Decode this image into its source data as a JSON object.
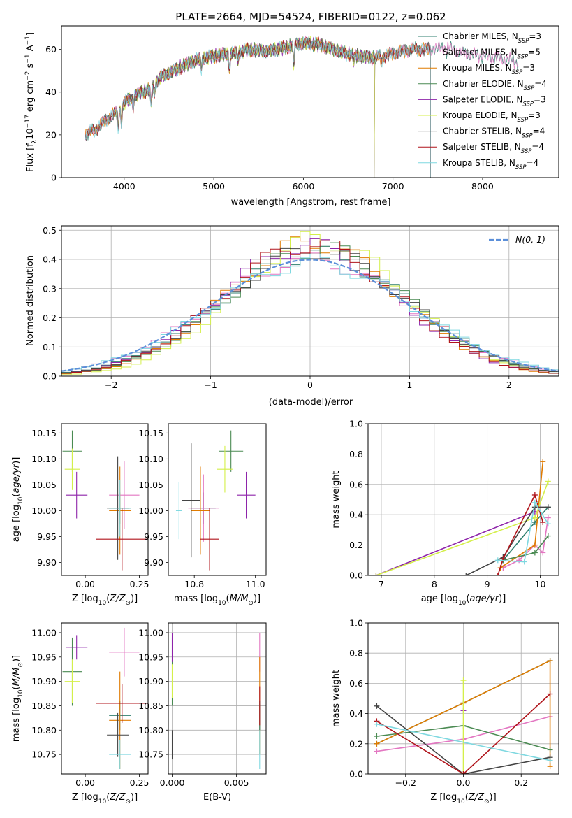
{
  "figure_title": "PLATE=2664, MJD=54524, FIBERID=0122, z=0.062",
  "colors": {
    "Chabrier MILES": "#2f7f6f",
    "Salpeter MILES": "#e377c2",
    "Kroupa MILES": "#e07b00",
    "Chabrier ELODIE": "#4a8a52",
    "Salpeter ELODIE": "#8e24aa",
    "Kroupa ELODIE": "#d4ef4a",
    "Chabrier STELIB": "#444444",
    "Salpeter STELIB": "#b0141b",
    "Kroupa STELIB": "#7fd8e0",
    "gaussian": "#5b8fd9",
    "grid": "#b0b0b0"
  },
  "chart_data": [
    {
      "id": "spectrum",
      "type": "line",
      "title": "PLATE=2664, MJD=54524, FIBERID=0122, z=0.062",
      "xlabel": "wavelength [Angstrom, rest frame]",
      "ylabel": "Flux [f_λ 10^-17 erg cm^-2 s^-1 A^-1]",
      "xlim": [
        3300,
        8850
      ],
      "ylim": [
        0,
        71
      ],
      "xticks": [
        4000,
        5000,
        6000,
        7000,
        8000
      ],
      "yticks": [
        0,
        20,
        40,
        60
      ],
      "grid": false,
      "legend_position": "top-right",
      "continuum": {
        "x": [
          3560,
          3700,
          3800,
          3900,
          4000,
          4100,
          4200,
          4300,
          4400,
          4600,
          4800,
          5000,
          5200,
          5400,
          5600,
          5800,
          6000,
          6200,
          6400,
          6600,
          6800,
          7000,
          7200,
          7400,
          7600,
          7800,
          8000,
          8200,
          8400
        ],
        "y": [
          20,
          23,
          27,
          30,
          35,
          38,
          40,
          41,
          47,
          51,
          55,
          57,
          58,
          60,
          59,
          61,
          63,
          62,
          59,
          57,
          56,
          58,
          60,
          60,
          61,
          58,
          57,
          56,
          54
        ]
      },
      "series": [
        {
          "name": "Chabrier MILES, N_SSP=3",
          "label_main": "Chabrier MILES, N",
          "label_sub": "SSP",
          "label_tail": "=3",
          "start": 3560,
          "end": 8400,
          "drop": null
        },
        {
          "name": "Salpeter MILES, N_SSP=5",
          "label_main": "Salpeter MILES, N",
          "label_sub": "SSP",
          "label_tail": "=5",
          "start": 3560,
          "end": 8400,
          "drop": null
        },
        {
          "name": "Kroupa MILES, N_SSP=3",
          "label_main": "Kroupa MILES, N",
          "label_sub": "SSP",
          "label_tail": "=3",
          "start": 3560,
          "end": 7420,
          "drop": 7420
        },
        {
          "name": "Chabrier ELODIE, N_SSP=4",
          "label_main": "Chabrier ELODIE, N",
          "label_sub": "SSP",
          "label_tail": "=4",
          "start": 3900,
          "end": 6800,
          "drop": 6790
        },
        {
          "name": "Salpeter ELODIE, N_SSP=3",
          "label_main": "Salpeter ELODIE, N",
          "label_sub": "SSP",
          "label_tail": "=3",
          "start": 3900,
          "end": 6800,
          "drop": 6790
        },
        {
          "name": "Kroupa ELODIE, N_SSP=3",
          "label_main": "Kroupa ELODIE, N",
          "label_sub": "SSP",
          "label_tail": "=3",
          "start": 3900,
          "end": 6800,
          "drop": 6790
        },
        {
          "name": "Chabrier STELIB, N_SSP=4",
          "label_main": "Chabrier STELIB, N",
          "label_sub": "SSP",
          "label_tail": "=4",
          "start": 3560,
          "end": 7420,
          "drop": 7420
        },
        {
          "name": "Salpeter STELIB, N_SSP=4",
          "label_main": "Salpeter STELIB, N",
          "label_sub": "SSP",
          "label_tail": "=4",
          "start": 3560,
          "end": 7420,
          "drop": 7420
        },
        {
          "name": "Kroupa STELIB, N_SSP=4",
          "label_main": "Kroupa STELIB, N",
          "label_sub": "SSP",
          "label_tail": "=4",
          "start": 3560,
          "end": 7420,
          "drop": 7420
        }
      ]
    },
    {
      "id": "residuals",
      "type": "step",
      "xlabel": "(data-model)/error",
      "ylabel": "Normed distribution",
      "xlim": [
        -2.5,
        2.5
      ],
      "ylim": [
        0,
        0.515
      ],
      "xticks": [
        -2,
        -1,
        0,
        1,
        2
      ],
      "yticks": [
        0.0,
        0.1,
        0.2,
        0.3,
        0.4,
        0.5
      ],
      "grid": true,
      "legend_position": "top-right",
      "legend_label": "N(0, 1)",
      "bin_width": 0.1,
      "series": [
        {
          "model": "Chabrier MILES",
          "shift": 0.1,
          "scale": 1.05
        },
        {
          "model": "Salpeter MILES",
          "shift": 0.0,
          "scale": 1.0
        },
        {
          "model": "Kroupa MILES",
          "shift": 0.05,
          "scale": 1.15
        },
        {
          "model": "Chabrier ELODIE",
          "shift": 0.15,
          "scale": 1.1
        },
        {
          "model": "Salpeter ELODIE",
          "shift": -0.05,
          "scale": 1.12
        },
        {
          "model": "Kroupa ELODIE",
          "shift": 0.2,
          "scale": 1.18
        },
        {
          "model": "Chabrier STELIB",
          "shift": 0.1,
          "scale": 1.08
        },
        {
          "model": "Salpeter STELIB",
          "shift": 0.0,
          "scale": 1.13
        },
        {
          "model": "Kroupa STELIB",
          "shift": 0.05,
          "scale": 0.98
        }
      ]
    },
    {
      "id": "age-vs-z",
      "type": "scatter",
      "xlabel": "Z [log10(Z/Z⊙)]",
      "ylabel": "age [log10(age/yr)]",
      "xlim": [
        -0.11,
        0.29
      ],
      "ylim": [
        9.875,
        10.168
      ],
      "xticks": [
        0.0,
        0.25
      ],
      "xticklabels": [
        "0.00",
        "0.25"
      ],
      "yticks": [
        9.9,
        9.95,
        10.0,
        10.05,
        10.1,
        10.15
      ],
      "yticklabels": [
        "9.90",
        "9.95",
        "10.00",
        "10.05",
        "10.10",
        "10.15"
      ],
      "grid": false,
      "points": [
        {
          "model": "Chabrier MILES",
          "x": 0.16,
          "y": 10.005,
          "xerr": 0.05,
          "yerr": 0.03
        },
        {
          "model": "Salpeter MILES",
          "x": 0.18,
          "y": 10.03,
          "xerr": 0.07,
          "yerr": 0.065
        },
        {
          "model": "Kroupa MILES",
          "x": 0.16,
          "y": 10.0,
          "xerr": 0.05,
          "yerr": 0.085
        },
        {
          "model": "Chabrier ELODIE",
          "x": -0.06,
          "y": 10.115,
          "xerr": 0.045,
          "yerr": 0.04
        },
        {
          "model": "Salpeter ELODIE",
          "x": -0.04,
          "y": 10.03,
          "xerr": 0.05,
          "yerr": 0.045
        },
        {
          "model": "Kroupa ELODIE",
          "x": -0.06,
          "y": 10.08,
          "xerr": 0.035,
          "yerr": 0.04
        },
        {
          "model": "Chabrier STELIB",
          "x": 0.15,
          "y": 10.005,
          "xerr": 0.05,
          "yerr": 0.1
        },
        {
          "model": "Salpeter STELIB",
          "x": 0.17,
          "y": 9.945,
          "xerr": 0.12,
          "yerr": 0.06
        },
        {
          "model": "Kroupa STELIB",
          "x": 0.16,
          "y": 10.005,
          "xerr": 0.05,
          "yerr": 0.055
        }
      ]
    },
    {
      "id": "age-vs-mass",
      "type": "scatter",
      "xlabel": "mass [log10(M/M⊙)]",
      "ylabel": "",
      "xlim": [
        10.715,
        11.035
      ],
      "ylim": [
        9.875,
        10.168
      ],
      "xticks": [
        10.8,
        11.0
      ],
      "xticklabels": [
        "10.8",
        "11.0"
      ],
      "yticks": [
        9.9,
        9.95,
        10.0,
        10.05,
        10.1,
        10.15
      ],
      "yticklabels": [
        "9.90",
        "9.95",
        "10.00",
        "10.05",
        "10.10",
        "10.15"
      ],
      "grid": false,
      "points": [
        {
          "model": "Chabrier MILES",
          "x": 10.83,
          "y": 10.005,
          "xerr": 0.04,
          "yerr": 0.03
        },
        {
          "model": "Salpeter MILES",
          "x": 10.83,
          "y": 10.005,
          "xerr": 0.05,
          "yerr": 0.065
        },
        {
          "model": "Kroupa MILES",
          "x": 10.82,
          "y": 10.0,
          "xerr": 0.03,
          "yerr": 0.085
        },
        {
          "model": "Chabrier ELODIE",
          "x": 10.92,
          "y": 10.115,
          "xerr": 0.04,
          "yerr": 0.04
        },
        {
          "model": "Salpeter ELODIE",
          "x": 10.97,
          "y": 10.03,
          "xerr": 0.03,
          "yerr": 0.045
        },
        {
          "model": "Kroupa ELODIE",
          "x": 10.9,
          "y": 10.08,
          "xerr": 0.025,
          "yerr": 0.045
        },
        {
          "model": "Chabrier STELIB",
          "x": 10.79,
          "y": 10.02,
          "xerr": 0.03,
          "yerr": 0.11
        },
        {
          "model": "Salpeter STELIB",
          "x": 10.85,
          "y": 9.945,
          "xerr": 0.03,
          "yerr": 0.06
        },
        {
          "model": "Kroupa STELIB",
          "x": 10.75,
          "y": 10.0,
          "xerr": 0.01,
          "yerr": 0.055
        }
      ]
    },
    {
      "id": "weight-vs-age",
      "type": "line",
      "xlabel": "age [log10(age/yr)]",
      "ylabel": "mass weight",
      "xlim": [
        6.75,
        10.35
      ],
      "ylim": [
        0,
        1
      ],
      "xticks": [
        7,
        8,
        9,
        10
      ],
      "yticks": [
        0.0,
        0.2,
        0.4,
        0.6,
        0.8,
        1.0
      ],
      "yticklabels": [
        "0.0",
        "0.2",
        "0.4",
        "0.6",
        "0.8",
        "1.0"
      ],
      "grid": true,
      "series": [
        {
          "model": "Chabrier MILES",
          "x": [
            9.3,
            9.9,
            10.15
          ],
          "y": [
            0.1,
            0.35,
            0.45
          ]
        },
        {
          "model": "Salpeter MILES",
          "x": [
            9.3,
            9.6,
            9.9,
            10.05,
            10.15
          ],
          "y": [
            0.05,
            0.1,
            0.2,
            0.15,
            0.38
          ]
        },
        {
          "model": "Kroupa MILES",
          "x": [
            9.25,
            9.9,
            10.05
          ],
          "y": [
            0.05,
            0.2,
            0.75
          ]
        },
        {
          "model": "Chabrier ELODIE",
          "x": [
            9.3,
            9.9,
            10.15
          ],
          "y": [
            0.1,
            0.15,
            0.26
          ]
        },
        {
          "model": "Salpeter ELODIE",
          "x": [
            6.9,
            9.9
          ],
          "y": [
            0.0,
            0.42
          ]
        },
        {
          "model": "Kroupa ELODIE",
          "x": [
            6.9,
            9.9,
            10.15
          ],
          "y": [
            0.0,
            0.38,
            0.62
          ]
        },
        {
          "model": "Chabrier STELIB",
          "x": [
            8.6,
            9.3,
            9.9,
            10.15
          ],
          "y": [
            0.0,
            0.12,
            0.45,
            0.45
          ]
        },
        {
          "model": "Salpeter STELIB",
          "x": [
            9.2,
            9.3,
            9.9,
            10.05
          ],
          "y": [
            0.0,
            0.11,
            0.53,
            0.35
          ]
        },
        {
          "model": "Kroupa STELIB",
          "x": [
            9.2,
            9.7,
            9.9,
            10.15
          ],
          "y": [
            0.1,
            0.09,
            0.48,
            0.34
          ]
        }
      ]
    },
    {
      "id": "mass-vs-z",
      "type": "scatter",
      "xlabel": "Z [log10(Z/Z⊙)]",
      "ylabel": "mass [log10(M/M⊙)]",
      "xlim": [
        -0.11,
        0.29
      ],
      "ylim": [
        10.71,
        11.02
      ],
      "xticks": [
        0.0,
        0.25
      ],
      "xticklabels": [
        "0.00",
        "0.25"
      ],
      "yticks": [
        10.75,
        10.8,
        10.85,
        10.9,
        10.95,
        11.0
      ],
      "yticklabels": [
        "10.75",
        "10.80",
        "10.85",
        "10.90",
        "10.95",
        "11.00"
      ],
      "grid": false,
      "points": [
        {
          "model": "Chabrier MILES",
          "x": 0.16,
          "y": 10.83,
          "xerr": 0.05,
          "yerr": 0.03
        },
        {
          "model": "Salpeter MILES",
          "x": 0.18,
          "y": 10.96,
          "xerr": 0.07,
          "yerr": 0.05
        },
        {
          "model": "Kroupa MILES",
          "x": 0.16,
          "y": 10.82,
          "xerr": 0.05,
          "yerr": 0.1
        },
        {
          "model": "Chabrier ELODIE",
          "x": -0.06,
          "y": 10.92,
          "xerr": 0.045,
          "yerr": 0.07
        },
        {
          "model": "Salpeter ELODIE",
          "x": -0.04,
          "y": 10.97,
          "xerr": 0.05,
          "yerr": 0.025
        },
        {
          "model": "Kroupa ELODIE",
          "x": -0.06,
          "y": 10.9,
          "xerr": 0.035,
          "yerr": 0.045
        },
        {
          "model": "Chabrier STELIB",
          "x": 0.15,
          "y": 10.79,
          "xerr": 0.05,
          "yerr": 0.045
        },
        {
          "model": "Salpeter STELIB",
          "x": 0.17,
          "y": 10.855,
          "xerr": 0.12,
          "yerr": 0.04
        },
        {
          "model": "Kroupa STELIB",
          "x": 0.16,
          "y": 10.75,
          "xerr": 0.05,
          "yerr": 0.03
        }
      ]
    },
    {
      "id": "mass-vs-ebv",
      "type": "scatter",
      "xlabel": "E(B-V)",
      "ylabel": "",
      "xlim": [
        -0.0003,
        0.0073
      ],
      "ylim": [
        10.71,
        11.02
      ],
      "xticks": [
        0.0,
        0.005
      ],
      "xticklabels": [
        "0.000",
        "0.005"
      ],
      "yticks": [
        10.75,
        10.8,
        10.85,
        10.9,
        10.95,
        11.0
      ],
      "yticklabels": [
        "10.75",
        "10.80",
        "10.85",
        "10.90",
        "10.95",
        "11.00"
      ],
      "grid": true,
      "points": [
        {
          "model": "Chabrier ELODIE",
          "x": 0.0,
          "y": 10.92,
          "xerr": 0,
          "yerr": 0.07
        },
        {
          "model": "Salpeter ELODIE",
          "x": 0.0,
          "y": 10.97,
          "xerr": 0,
          "yerr": 0.03
        },
        {
          "model": "Kroupa ELODIE",
          "x": 0.0,
          "y": 10.9,
          "xerr": 0,
          "yerr": 0.035
        },
        {
          "model": "Chabrier STELIB",
          "x": 0.0,
          "y": 10.77,
          "xerr": 0,
          "yerr": 0.03
        },
        {
          "model": "Salpeter MILES",
          "x": 0.0068,
          "y": 10.96,
          "xerr": 0,
          "yerr": 0.04
        },
        {
          "model": "Kroupa MILES",
          "x": 0.0068,
          "y": 10.85,
          "xerr": 0,
          "yerr": 0.1
        },
        {
          "model": "Chabrier MILES",
          "x": 0.0068,
          "y": 10.83,
          "xerr": 0,
          "yerr": 0.03
        },
        {
          "model": "Salpeter STELIB",
          "x": 0.0068,
          "y": 10.85,
          "xerr": 0,
          "yerr": 0.04
        },
        {
          "model": "Kroupa STELIB",
          "x": 0.0068,
          "y": 10.76,
          "xerr": 0,
          "yerr": 0.04
        }
      ]
    },
    {
      "id": "weight-vs-z",
      "type": "line",
      "xlabel": "Z [log10(Z/Z⊙)]",
      "ylabel": "mass weight",
      "xlim": [
        -0.33,
        0.33
      ],
      "ylim": [
        0,
        1
      ],
      "xticks": [
        -0.2,
        0.0,
        0.2
      ],
      "xticklabels": [
        "−0.2",
        "0.0",
        "0.2"
      ],
      "yticks": [
        0.0,
        0.2,
        0.4,
        0.6,
        0.8,
        1.0
      ],
      "yticklabels": [
        "0.0",
        "0.2",
        "0.4",
        "0.6",
        "0.8",
        "1.0"
      ],
      "grid": true,
      "series": [
        {
          "model": "Chabrier MILES",
          "x": [
            -0.3,
            0.0,
            0.3
          ],
          "y": [
            0.2,
            0.47,
            0.75
          ]
        },
        {
          "model": "Salpeter MILES",
          "x": [
            -0.3,
            0.0,
            0.3
          ],
          "y": [
            0.15,
            0.23,
            0.38
          ]
        },
        {
          "model": "Kroupa MILES",
          "x": [
            -0.3,
            0.0,
            0.3,
            0.3
          ],
          "y": [
            0.2,
            0.47,
            0.75,
            0.05
          ]
        },
        {
          "model": "Chabrier ELODIE",
          "x": [
            -0.3,
            0.0,
            0.3
          ],
          "y": [
            0.25,
            0.32,
            0.16
          ]
        },
        {
          "model": "Salpeter ELODIE",
          "x": [
            0.0
          ],
          "y": [
            0.42
          ]
        },
        {
          "model": "Kroupa ELODIE",
          "x": [
            0.0,
            0.0
          ],
          "y": [
            0.62,
            0.0
          ]
        },
        {
          "model": "Chabrier STELIB",
          "x": [
            -0.3,
            0.0,
            0.3
          ],
          "y": [
            0.45,
            0.0,
            0.11
          ]
        },
        {
          "model": "Salpeter STELIB",
          "x": [
            -0.3,
            0.0,
            0.3
          ],
          "y": [
            0.35,
            0.0,
            0.53
          ]
        },
        {
          "model": "Kroupa STELIB",
          "x": [
            -0.3,
            0.3
          ],
          "y": [
            0.33,
            0.09
          ]
        }
      ]
    }
  ]
}
